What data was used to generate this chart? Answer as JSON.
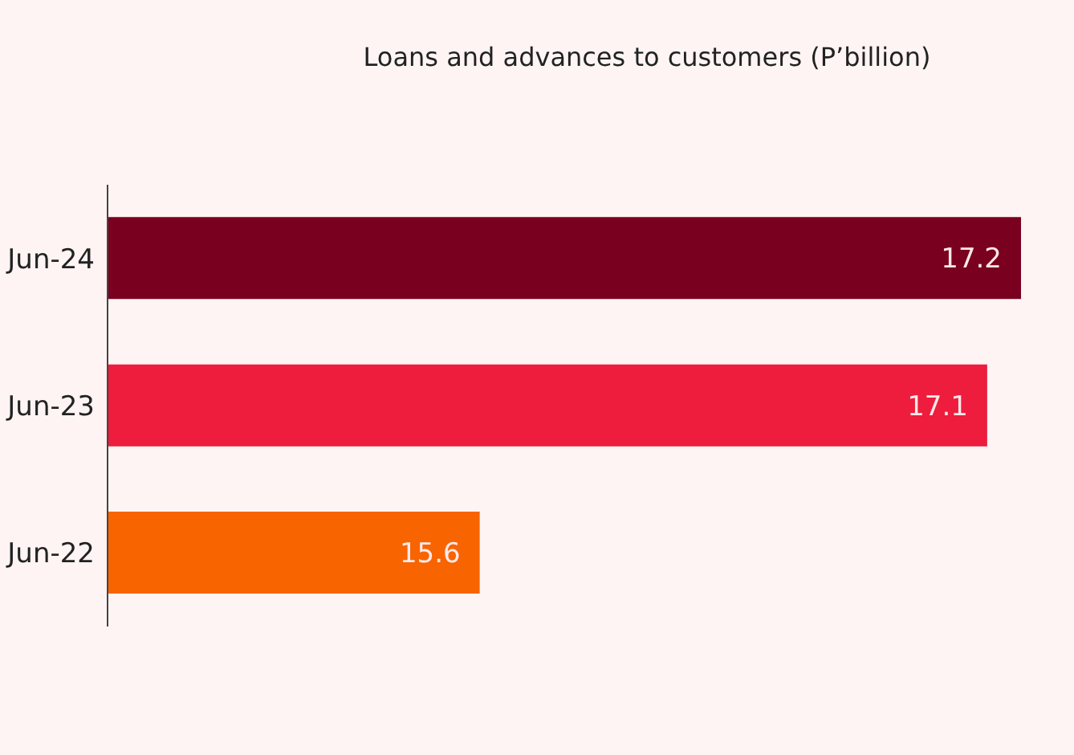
{
  "chart_data": {
    "type": "bar",
    "orientation": "horizontal",
    "title": "Loans and advances to customers  (P’billion)",
    "categories": [
      "Jun-24",
      "Jun-23",
      "Jun-22"
    ],
    "values": [
      17.2,
      17.1,
      15.6
    ],
    "colors": [
      "#7a0020",
      "#ee1c3d",
      "#f76400"
    ],
    "xlim": [
      14.5,
      17.2
    ],
    "tick_labels": "y",
    "data_labels": true
  }
}
